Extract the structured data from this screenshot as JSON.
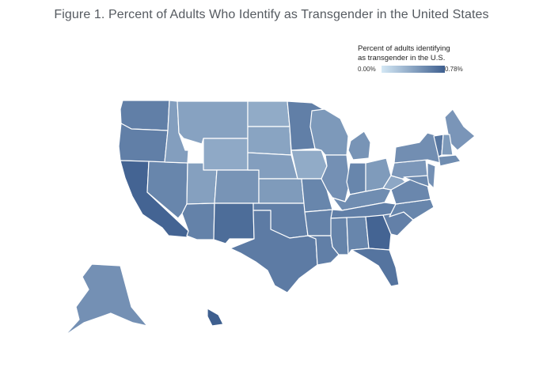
{
  "title": "Figure 1. Percent of Adults Who Identify as Transgender in the United States",
  "legend": {
    "title_line1": "Percent of adults identifying",
    "title_line2": "as transgender in the U.S.",
    "min_label": "0.00%",
    "max_label": "0.78%",
    "min_value": 0.0,
    "max_value": 0.78,
    "color_low": "#d4e8f5",
    "color_high": "#3e5f8f"
  },
  "chart_data": {
    "type": "choropleth",
    "region": "United States",
    "unit": "percent of adults identifying as transgender",
    "states": [
      {
        "name": "Washington",
        "value": 0.6
      },
      {
        "name": "Oregon",
        "value": 0.6
      },
      {
        "name": "California",
        "value": 0.75
      },
      {
        "name": "Nevada",
        "value": 0.56
      },
      {
        "name": "Idaho",
        "value": 0.42
      },
      {
        "name": "Montana",
        "value": 0.4
      },
      {
        "name": "Wyoming",
        "value": 0.36
      },
      {
        "name": "Utah",
        "value": 0.41
      },
      {
        "name": "Arizona",
        "value": 0.58
      },
      {
        "name": "Colorado",
        "value": 0.48
      },
      {
        "name": "New Mexico",
        "value": 0.7
      },
      {
        "name": "North Dakota",
        "value": 0.35
      },
      {
        "name": "South Dakota",
        "value": 0.39
      },
      {
        "name": "Nebraska",
        "value": 0.42
      },
      {
        "name": "Kansas",
        "value": 0.44
      },
      {
        "name": "Oklahoma",
        "value": 0.6
      },
      {
        "name": "Texas",
        "value": 0.62
      },
      {
        "name": "Minnesota",
        "value": 0.6
      },
      {
        "name": "Iowa",
        "value": 0.35
      },
      {
        "name": "Missouri",
        "value": 0.56
      },
      {
        "name": "Arkansas",
        "value": 0.58
      },
      {
        "name": "Louisiana",
        "value": 0.6
      },
      {
        "name": "Wisconsin",
        "value": 0.45
      },
      {
        "name": "Illinois",
        "value": 0.5
      },
      {
        "name": "Michigan",
        "value": 0.48
      },
      {
        "name": "Indiana",
        "value": 0.56
      },
      {
        "name": "Ohio",
        "value": 0.44
      },
      {
        "name": "Kentucky",
        "value": 0.52
      },
      {
        "name": "Tennessee",
        "value": 0.6
      },
      {
        "name": "Mississippi",
        "value": 0.57
      },
      {
        "name": "Alabama",
        "value": 0.56
      },
      {
        "name": "Georgia",
        "value": 0.75
      },
      {
        "name": "Florida",
        "value": 0.66
      },
      {
        "name": "South Carolina",
        "value": 0.59
      },
      {
        "name": "North Carolina",
        "value": 0.56
      },
      {
        "name": "Virginia",
        "value": 0.55
      },
      {
        "name": "West Virginia",
        "value": 0.37
      },
      {
        "name": "Pennsylvania",
        "value": 0.46
      },
      {
        "name": "New York",
        "value": 0.51
      },
      {
        "name": "Maine",
        "value": 0.47
      },
      {
        "name": "Vermont",
        "value": 0.65
      },
      {
        "name": "New Hampshire",
        "value": 0.44
      },
      {
        "name": "Massachusetts",
        "value": 0.52
      },
      {
        "name": "New Jersey",
        "value": 0.5
      },
      {
        "name": "Maryland",
        "value": 0.54
      },
      {
        "name": "Alaska",
        "value": 0.5
      },
      {
        "name": "Hawaii",
        "value": 0.78
      }
    ]
  }
}
